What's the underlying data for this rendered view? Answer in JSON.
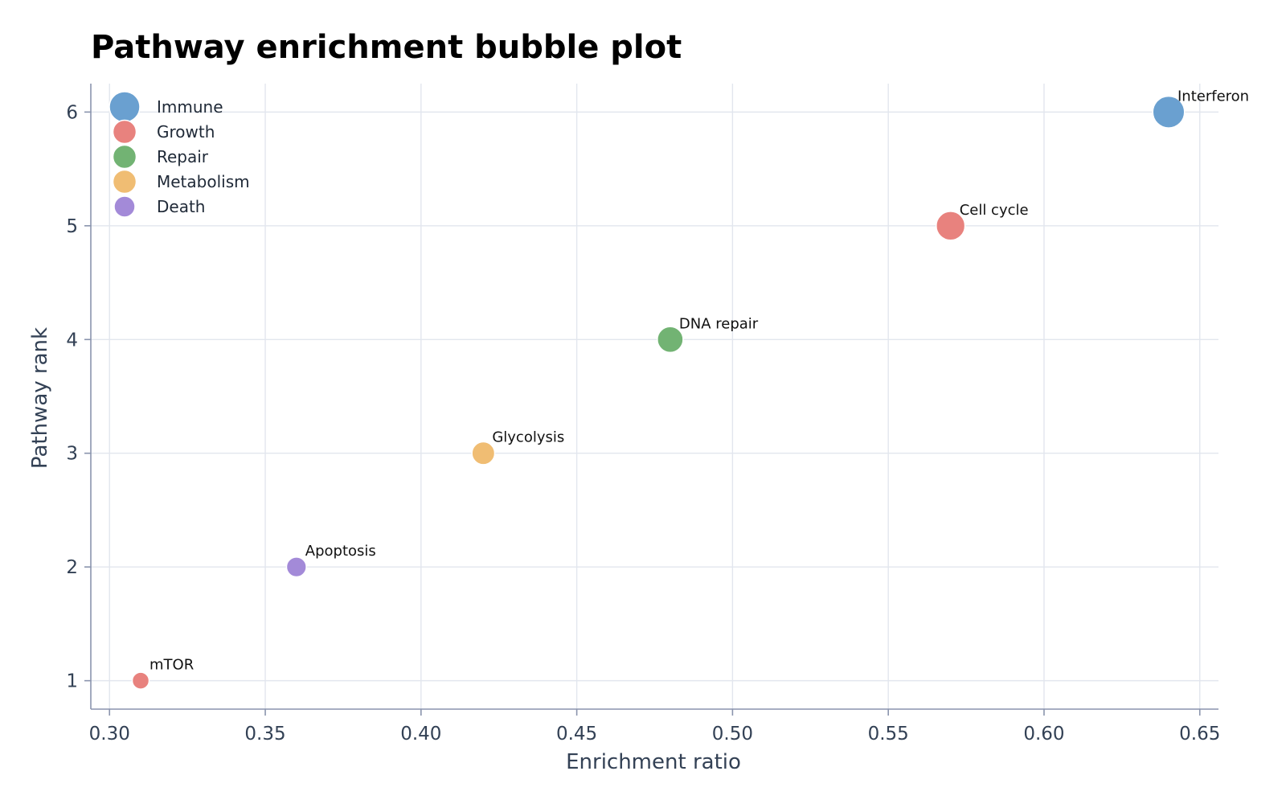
{
  "chart_data": {
    "type": "scatter",
    "title": "Pathway enrichment bubble plot",
    "xlabel": "Enrichment ratio",
    "ylabel": "Pathway rank",
    "xlim": [
      0.294,
      0.656
    ],
    "ylim": [
      0.75,
      6.25
    ],
    "xticks": [
      0.3,
      0.35,
      0.4,
      0.45,
      0.5,
      0.55,
      0.6,
      0.65
    ],
    "xtick_labels": [
      "0.30",
      "0.35",
      "0.40",
      "0.45",
      "0.50",
      "0.55",
      "0.60",
      "0.65"
    ],
    "yticks": [
      1,
      2,
      3,
      4,
      5,
      6
    ],
    "ytick_labels": [
      "1",
      "2",
      "3",
      "4",
      "5",
      "6"
    ],
    "grid": true,
    "legend_position": "top-left",
    "groups": [
      {
        "name": "Immune",
        "color": "#6aa0d0"
      },
      {
        "name": "Growth",
        "color": "#e8827e"
      },
      {
        "name": "Repair",
        "color": "#72b373"
      },
      {
        "name": "Metabolism",
        "color": "#f0bd73"
      },
      {
        "name": "Death",
        "color": "#a38ad8"
      }
    ],
    "points": [
      {
        "label": "Interferon",
        "x": 0.64,
        "y": 6,
        "group": "Immune",
        "size": 6
      },
      {
        "label": "Cell cycle",
        "x": 0.57,
        "y": 5,
        "group": "Growth",
        "size": 5
      },
      {
        "label": "DNA repair",
        "x": 0.48,
        "y": 4,
        "group": "Repair",
        "size": 4
      },
      {
        "label": "Glycolysis",
        "x": 0.42,
        "y": 3,
        "group": "Metabolism",
        "size": 3
      },
      {
        "label": "Apoptosis",
        "x": 0.36,
        "y": 2,
        "group": "Death",
        "size": 2
      },
      {
        "label": "mTOR",
        "x": 0.31,
        "y": 1,
        "group": "Growth",
        "size": 1
      }
    ]
  }
}
